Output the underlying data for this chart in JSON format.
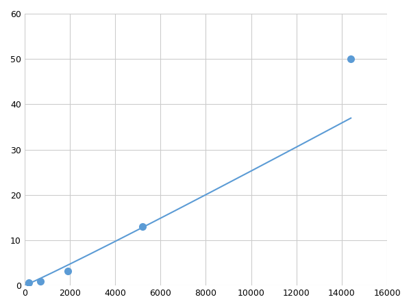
{
  "x_data": [
    200,
    700,
    1900,
    5200,
    14400
  ],
  "y_data": [
    0.7,
    1.0,
    3.2,
    13.0,
    50.0
  ],
  "line_color": "#5b9bd5",
  "marker_color": "#5b9bd5",
  "marker_size": 7,
  "marker_style": "o",
  "xlim": [
    0,
    16000
  ],
  "ylim": [
    0,
    60
  ],
  "xticks": [
    0,
    2000,
    4000,
    6000,
    8000,
    10000,
    12000,
    14000,
    16000
  ],
  "yticks": [
    0,
    10,
    20,
    30,
    40,
    50,
    60
  ],
  "grid_color": "#cccccc",
  "background_color": "#ffffff",
  "line_width": 1.5
}
